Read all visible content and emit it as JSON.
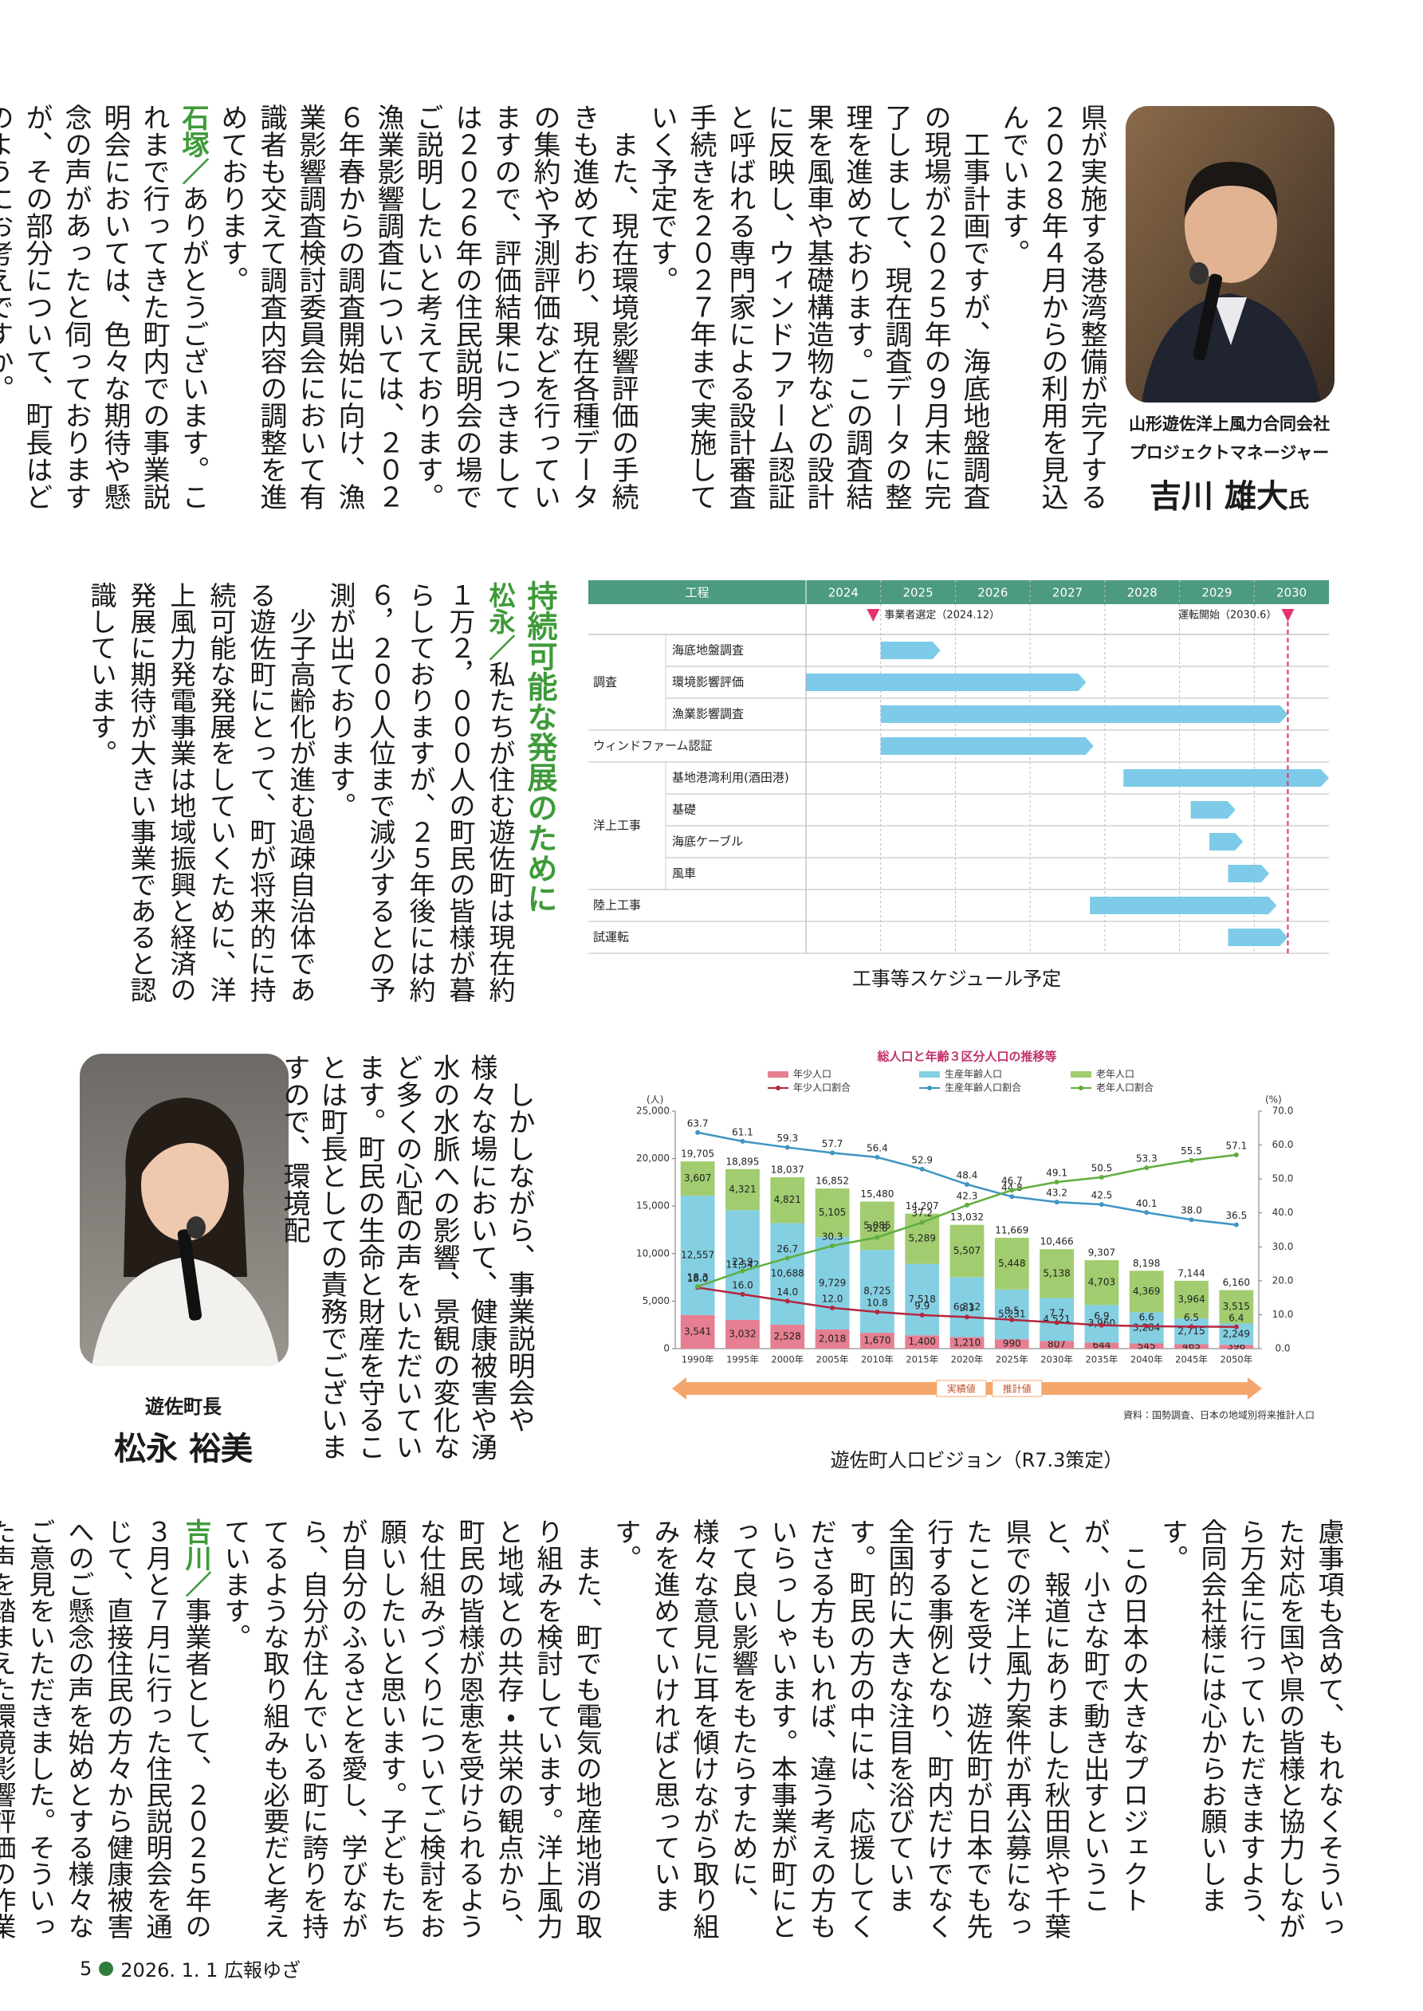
{
  "article": {
    "block1": [
      {
        "text": "県が実施する港湾整備が完了する２０２８年４月からの利用を見込んでいます。"
      },
      {
        "text": "工事計画ですが、海底地盤調査の現場が２０２５年の９月末に完了しまして、現在調査データの整理を進めております。この調査結果を風車や基礎構造物などの設計に反映し、ウィンドファーム認証と呼ばれる専門家による設計審査手続きを２０２７年まで実施していく予定です。"
      },
      {
        "text": "また、現在環境影響評価の手続きも進めており、現在各種データの集約や予測評価などを行っていますので、評価結果につきましては２０２６年の住民説明会の場でご説明したいと考えております。漁業影響調査については、２０２６年春からの調査開始に向け、漁業影響調査検討委員会において有識者も交えて調査内容の調整を進めております。"
      },
      {
        "speaker": "石塚／",
        "text": "ありがとうございます。これまで行ってきた町内での事業説明会においては、色々な期待や懸念の声があったと伺っておりますが、その部分について、町長はどのようにお考えですか。"
      }
    ],
    "block2": {
      "heading": "持続可能な発展のために",
      "paragraphs": [
        {
          "speaker": "松永／",
          "text": "私たちが住む遊佐町は現在約１万２，０００人の町民の皆様が暮らしておりますが、２５年後には約６，２００人位まで減少するとの予測が出ております。"
        },
        {
          "text": "少子高齢化が進む過疎自治体である遊佐町にとって、町が将来的に持続可能な発展をしていくために、洋上風力発電事業は地域振興と経済の発展に期待が大きい事業であると認識しています。"
        }
      ]
    },
    "block3": [
      {
        "text": "しかしながら、事業説明会や様々な場において、健康被害や湧水の水脈への影響、景観の変化など多くの心配の声をいただいています。町民の生命と財産を守ることは町長としての責務でございますので、環境配"
      }
    ],
    "block4": [
      {
        "text": "慮事項も含めて、もれなくそういった対応を国や県の皆様と協力しながら万全に行っていただきますよう、合同会社様には心からお願いします。"
      },
      {
        "text": "この日本の大きなプロジェクトが、小さな町で動き出すということ、報道にありました秋田県や千葉県での洋上風力案件が再公募になったことを受け、遊佐町が日本でも先行する事例となり、町内だけでなく全国的に大きな注目を浴びています。町民の方の中には、応援してくださる方もいれば、違う考えの方もいらっしゃいます。本事業が町にとって良い影響をもたらすために、様々な意見に耳を傾けながら取り組みを進めていければと思っています。"
      },
      {
        "text": "また、町でも電気の地産地消の取り組みを検討しています。洋上風力と地域との共存・共栄の観点から、町民の皆様が恩恵を受けられるような仕組みづくりについてご検討をお願いしたいと思います。子どもたちが自分のふるさとを愛し、学びながら、自分が住んでいる町に誇りを持てるような取り組みも必要だと考えています。"
      },
      {
        "speaker": "吉川／",
        "text": "事業者として、２０２５年の３月と７月に行った住民説明会を通じて、直接住民の方々から健康被害へのご懸念の声を始めとする様々なご意見をいただきました。そういった声を踏まえた環境影響評価の作業"
      }
    ]
  },
  "profiles": [
    {
      "company": "山形遊佐洋上風力合同会社",
      "role": "プロジェクトマネージャー",
      "name": "吉川 雄大",
      "honorific": "氏"
    },
    {
      "role": "遊佐町長",
      "name": "松永 裕美"
    }
  ],
  "captions": {
    "schedule": "工事等スケジュール予定",
    "population": "遊佐町人口ビジョン（R7.3策定）"
  },
  "footer": {
    "page": "5",
    "issue": "2026. 1. 1 広報ゆざ"
  },
  "chart_data": [
    {
      "type": "gantt",
      "header": "工程",
      "years": [
        2024,
        2025,
        2026,
        2027,
        2028,
        2029,
        2030
      ],
      "xlim": [
        2024,
        2031
      ],
      "bar_color": "#7dcbe8",
      "header_color": "#4c9a80",
      "milestone_color": "#e4336d",
      "milestones": [
        {
          "label": "事業者選定（2024.12）",
          "value": 2024.9
        },
        {
          "label": "運転開始（2030.6）",
          "value": 2030.45,
          "dashed_line": true
        }
      ],
      "groups": [
        {
          "name": "調査",
          "tasks": [
            {
              "name": "海底地盤調査",
              "start": 2025,
              "end": 2025.8
            },
            {
              "name": "環境影響評価",
              "start": 2024,
              "end": 2027.75
            },
            {
              "name": "漁業影響調査",
              "start": 2025,
              "end": 2030.45
            }
          ]
        },
        {
          "name": "ウィンドファーム認証",
          "tasks": [
            {
              "start": 2025,
              "end": 2027.85
            }
          ]
        },
        {
          "name": "洋上工事",
          "tasks": [
            {
              "name": "基地港湾利用(酒田港)",
              "start": 2028.25,
              "end": 2031
            },
            {
              "name": "基礎",
              "start": 2029.15,
              "end": 2029.75
            },
            {
              "name": "海底ケーブル",
              "start": 2029.4,
              "end": 2029.85
            },
            {
              "name": "風車",
              "start": 2029.65,
              "end": 2030.2
            }
          ]
        },
        {
          "name": "陸上工事",
          "tasks": [
            {
              "start": 2027.8,
              "end": 2030.3
            }
          ]
        },
        {
          "name": "試運転",
          "tasks": [
            {
              "start": 2029.65,
              "end": 2030.45
            }
          ]
        }
      ]
    },
    {
      "type": "bar",
      "stacked": true,
      "title": "総人口と年齢３区分人口の推移等",
      "y_unit": "(人)",
      "y2_unit": "(%)",
      "categories": [
        "1990年",
        "1995年",
        "2000年",
        "2005年",
        "2010年",
        "2015年",
        "2020年",
        "2025年",
        "2030年",
        "2035年",
        "2040年",
        "2045年",
        "2050年"
      ],
      "series": [
        {
          "name": "年少人口",
          "color": "#e57f91",
          "values": [
            3541,
            3032,
            2528,
            2018,
            1670,
            1400,
            1210,
            990,
            807,
            644,
            545,
            465,
            396
          ],
          "value_labels": [
            "3,541",
            "3,032",
            "2,528",
            "2,018",
            "1,670",
            "1,400",
            "1,210",
            "990",
            "807",
            "644",
            "545",
            "465",
            "396"
          ]
        },
        {
          "name": "生産年齢人口",
          "color": "#84cfe2",
          "values": [
            12557,
            11542,
            10688,
            9729,
            8725,
            7518,
            6312,
            5231,
            4521,
            3960,
            3284,
            2715,
            2249
          ],
          "value_labels": [
            "12,557",
            "11,542",
            "10,688",
            "9,729",
            "8,725",
            "7,518",
            "6,312",
            "5,231",
            "4,521",
            "3,960",
            "3,284",
            "2,715",
            "2,249"
          ]
        },
        {
          "name": "老年人口",
          "color": "#a1cc6f",
          "values": [
            3607,
            4321,
            4821,
            5105,
            5085,
            5289,
            5507,
            5448,
            5138,
            4703,
            4369,
            3964,
            3515
          ],
          "value_labels": [
            "3,607",
            "4,321",
            "4,821",
            "5,105",
            "5,085",
            "5,289",
            "5,507",
            "5,448",
            "5,138",
            "4,703",
            "4,369",
            "3,964",
            "3,515"
          ]
        },
        {
          "name": "年少人口割合",
          "type": "line",
          "axis": "y2",
          "color": "#b3283f",
          "values": [
            18.0,
            16.0,
            14.0,
            12.0,
            10.8,
            9.9,
            9.3,
            8.5,
            7.7,
            6.9,
            6.6,
            6.5,
            6.4
          ],
          "value_labels": [
            "18.0",
            "16.0",
            "14.0",
            "12.0",
            "10.8",
            "9.9",
            "9.3",
            "8.5",
            "7.7",
            "6.9",
            "6.6",
            "6.5",
            "6.4"
          ]
        },
        {
          "name": "生産年齢人口割合",
          "type": "line",
          "axis": "y2",
          "color": "#3f95c4",
          "values": [
            63.7,
            61.1,
            59.3,
            57.7,
            56.4,
            52.9,
            48.4,
            44.8,
            43.2,
            42.5,
            40.1,
            38.0,
            36.5
          ],
          "value_labels": [
            "63.7",
            "61.1",
            "59.3",
            "57.7",
            "56.4",
            "52.9",
            "48.4",
            "44.8",
            "43.2",
            "42.5",
            "40.1",
            "38.0",
            "36.5"
          ]
        },
        {
          "name": "老年人口割合",
          "type": "line",
          "axis": "y2",
          "color": "#5fae3f",
          "values": [
            18.3,
            22.9,
            26.7,
            30.3,
            32.8,
            37.2,
            42.3,
            46.7,
            49.1,
            50.5,
            53.3,
            55.5,
            57.1
          ],
          "value_labels": [
            "18.3",
            "22.9",
            "26.7",
            "30.3",
            "32.8",
            "37.2",
            "42.3",
            "46.7",
            "49.1",
            "50.5",
            "53.3",
            "55.5",
            "57.1"
          ]
        }
      ],
      "totals": [
        19705,
        18895,
        18037,
        16852,
        15480,
        14207,
        13032,
        11669,
        10466,
        9307,
        8198,
        7144,
        6160
      ],
      "totals_labels": [
        "19,705",
        "18,895",
        "18,037",
        "16,852",
        "15,480",
        "14,207",
        "13,032",
        "11,669",
        "10,466",
        "9,307",
        "8,198",
        "7,144",
        "6,160"
      ],
      "ylim": [
        0,
        25000
      ],
      "yticks": [
        0,
        {
          "value": 5000,
          "label": "5,000"
        },
        {
          "value": 10000,
          "label": "10,000"
        },
        {
          "value": 15000,
          "label": "15,000"
        },
        {
          "value": 20000,
          "label": "20,000"
        },
        {
          "value": 25000,
          "label": "25,000"
        }
      ],
      "y2lim": [
        0,
        70
      ],
      "y2ticks": [
        {
          "value": 0,
          "label": "0.0"
        },
        {
          "value": 10,
          "label": "10.0"
        },
        {
          "value": 20,
          "label": "20.0"
        },
        {
          "value": 30,
          "label": "30.0"
        },
        {
          "value": 40,
          "label": "40.0"
        },
        {
          "value": 50,
          "label": "50.0"
        },
        {
          "value": 60,
          "label": "60.0"
        },
        {
          "value": 70,
          "label": "70.0"
        }
      ],
      "periods": [
        "実績値",
        "推計値"
      ],
      "source": "資料：国勢調査、日本の地域別将来推計人口"
    }
  ]
}
